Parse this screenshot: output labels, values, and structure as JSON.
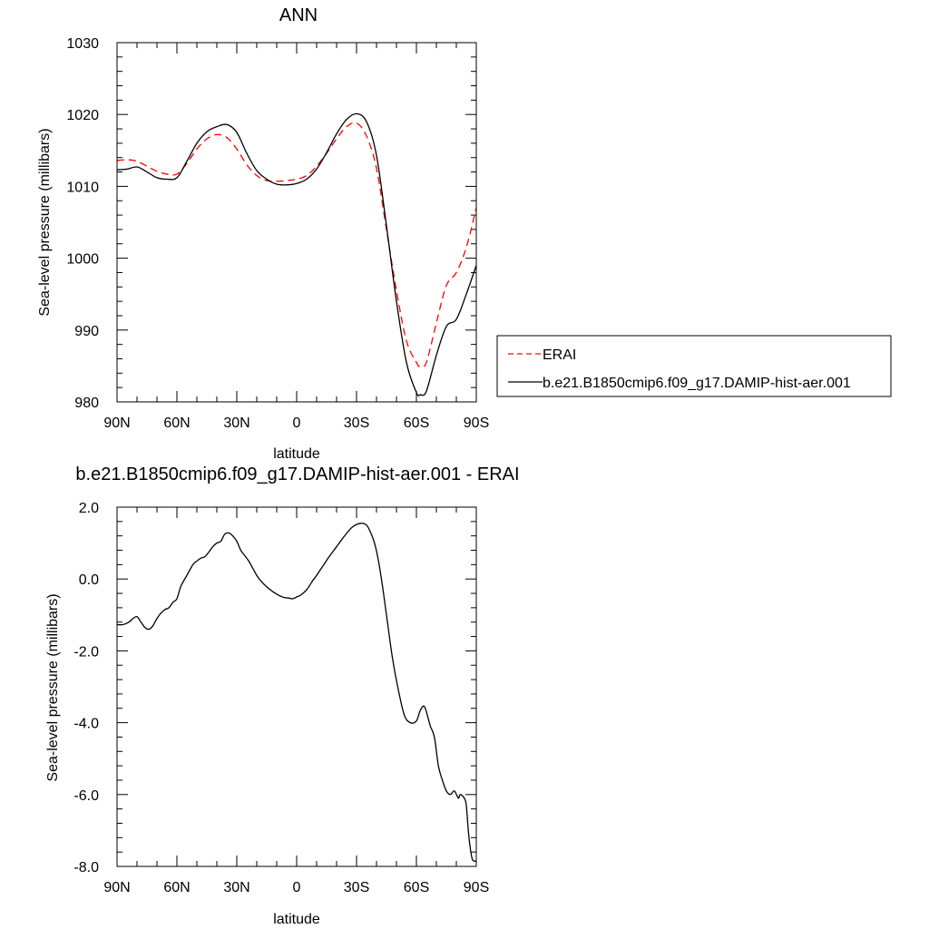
{
  "chart_data": [
    {
      "type": "line",
      "title": "ANN",
      "xlabel": "latitude",
      "ylabel": "Sea-level pressure (millibars)",
      "xlim": [
        90,
        -90
      ],
      "ylim": [
        980,
        1030
      ],
      "xticks": [
        90,
        60,
        30,
        0,
        -30,
        -60,
        -90
      ],
      "xtick_labels": [
        "90N",
        "60N",
        "30N",
        "0",
        "30S",
        "60S",
        "90S"
      ],
      "yticks": [
        980,
        990,
        1000,
        1010,
        1020,
        1030
      ],
      "ytick_labels": [
        "980",
        "990",
        "1000",
        "1010",
        "1020",
        "1030"
      ],
      "legend_position": "right",
      "series": [
        {
          "name": "ERAI",
          "color": "#ff0000",
          "dash": "dashed",
          "x": [
            90,
            85,
            80,
            75,
            70,
            65,
            60,
            55,
            50,
            45,
            40,
            35,
            30,
            25,
            20,
            15,
            10,
            5,
            0,
            -5,
            -10,
            -15,
            -20,
            -25,
            -30,
            -35,
            -40,
            -45,
            -50,
            -55,
            -60,
            -62,
            -65,
            -70,
            -75,
            -80,
            -85,
            -90
          ],
          "y": [
            1013.6,
            1013.7,
            1013.5,
            1012.8,
            1012.1,
            1011.7,
            1011.7,
            1013.2,
            1015.2,
            1016.6,
            1017.2,
            1016.8,
            1015.2,
            1013.0,
            1011.5,
            1010.8,
            1010.7,
            1010.8,
            1011.0,
            1011.5,
            1012.8,
            1014.6,
            1016.6,
            1018.3,
            1018.8,
            1017.0,
            1012.5,
            1004.0,
            995.5,
            988.5,
            985.5,
            984.9,
            985.5,
            991.0,
            996.2,
            998.0,
            1001.5,
            1007.0
          ]
        },
        {
          "name": "b.e21.B1850cmip6.f09_g17.DAMIP-hist-aer.001",
          "color": "#000000",
          "dash": "solid",
          "x": [
            90,
            85,
            80,
            75,
            70,
            65,
            60,
            55,
            50,
            45,
            40,
            35,
            30,
            25,
            20,
            15,
            10,
            5,
            0,
            -5,
            -10,
            -15,
            -20,
            -25,
            -30,
            -35,
            -40,
            -45,
            -50,
            -55,
            -60,
            -62,
            -65,
            -70,
            -75,
            -80,
            -85,
            -90
          ],
          "y": [
            1012.3,
            1012.4,
            1012.7,
            1012.0,
            1011.2,
            1011.0,
            1011.2,
            1013.5,
            1016.0,
            1017.6,
            1018.3,
            1018.6,
            1017.5,
            1014.6,
            1012.2,
            1011.0,
            1010.3,
            1010.2,
            1010.4,
            1011.0,
            1012.4,
            1014.7,
            1017.3,
            1019.3,
            1020.1,
            1019.0,
            1014.3,
            1004.5,
            994.0,
            985.5,
            981.3,
            981.0,
            981.5,
            986.5,
            990.5,
            991.5,
            995.0,
            999.0
          ]
        }
      ]
    },
    {
      "type": "line",
      "title": "b.e21.B1850cmip6.f09_g17.DAMIP-hist-aer.001 - ERAI",
      "xlabel": "latitude",
      "ylabel": "Sea-level pressure (millibars)",
      "xlim": [
        90,
        -90
      ],
      "ylim": [
        -8.0,
        2.0
      ],
      "xticks": [
        90,
        60,
        30,
        0,
        -30,
        -60,
        -90
      ],
      "xtick_labels": [
        "90N",
        "60N",
        "30N",
        "0",
        "30S",
        "60S",
        "90S"
      ],
      "yticks": [
        -8,
        -6,
        -4,
        -2,
        0,
        2
      ],
      "ytick_labels": [
        "-8.0",
        "-6.0",
        "-4.0",
        "-2.0",
        "0.0",
        "2.0"
      ],
      "series": [
        {
          "color": "#000000",
          "dash": "solid",
          "x": [
            90,
            87,
            84,
            82,
            80,
            78,
            76,
            74,
            72,
            70,
            68,
            66,
            64,
            62,
            60,
            58,
            55,
            52,
            50,
            48,
            46,
            44,
            42,
            40,
            38,
            36,
            34,
            32,
            30,
            28,
            26,
            24,
            22,
            20,
            18,
            15,
            12,
            10,
            8,
            6,
            4,
            2,
            0,
            -2,
            -5,
            -8,
            -10,
            -13,
            -16,
            -20,
            -24,
            -28,
            -32,
            -35,
            -37,
            -39,
            -41,
            -43,
            -45,
            -48,
            -51,
            -54,
            -57,
            -60,
            -62,
            -64,
            -66,
            -67,
            -69,
            -71,
            -73,
            -75,
            -77,
            -79,
            -81,
            -82,
            -84,
            -85,
            -86,
            -87,
            -88,
            -89,
            -90
          ],
          "y": [
            -1.27,
            -1.27,
            -1.2,
            -1.1,
            -1.05,
            -1.2,
            -1.35,
            -1.4,
            -1.3,
            -1.1,
            -0.95,
            -0.85,
            -0.8,
            -0.65,
            -0.55,
            -0.2,
            0.1,
            0.4,
            0.5,
            0.58,
            0.62,
            0.75,
            0.9,
            1.0,
            1.05,
            1.25,
            1.28,
            1.2,
            1.05,
            0.8,
            0.65,
            0.5,
            0.3,
            0.1,
            -0.05,
            -0.22,
            -0.35,
            -0.42,
            -0.48,
            -0.52,
            -0.53,
            -0.55,
            -0.5,
            -0.45,
            -0.3,
            -0.05,
            0.1,
            0.35,
            0.6,
            0.9,
            1.2,
            1.45,
            1.55,
            1.5,
            1.3,
            1.0,
            0.5,
            -0.2,
            -1.0,
            -2.2,
            -3.1,
            -3.8,
            -4.0,
            -3.95,
            -3.65,
            -3.55,
            -3.9,
            -4.1,
            -4.4,
            -5.2,
            -5.6,
            -5.9,
            -6.0,
            -5.9,
            -6.1,
            -6.0,
            -6.1,
            -6.3,
            -7.0,
            -7.5,
            -7.8,
            -7.85,
            -7.85
          ]
        }
      ]
    }
  ]
}
